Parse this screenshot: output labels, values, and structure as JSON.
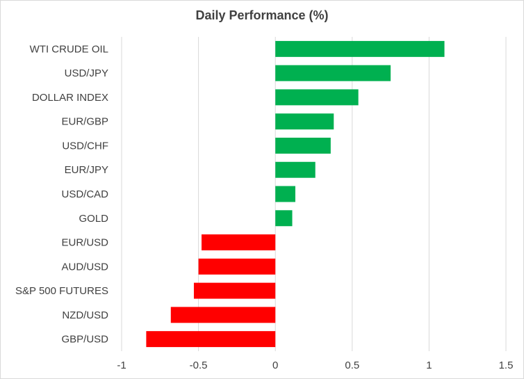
{
  "chart_data": {
    "type": "bar",
    "orientation": "horizontal",
    "title": "Daily Performance (%)",
    "xlabel": "",
    "ylabel": "",
    "categories": [
      "WTI CRUDE OIL",
      "USD/JPY",
      "DOLLAR INDEX",
      "EUR/GBP",
      "USD/CHF",
      "EUR/JPY",
      "USD/CAD",
      "GOLD",
      "EUR/USD",
      "AUD/USD",
      "S&P 500 FUTURES",
      "NZD/USD",
      "GBP/USD"
    ],
    "values": [
      1.1,
      0.75,
      0.54,
      0.38,
      0.36,
      0.26,
      0.13,
      0.11,
      -0.48,
      -0.5,
      -0.53,
      -0.68,
      -0.84
    ],
    "xlim": [
      -1,
      1.5
    ],
    "xticks": [
      "-1",
      "-0.5",
      "0",
      "0.5",
      "1",
      "1.5"
    ],
    "xtick_values": [
      -1,
      -0.5,
      0,
      0.5,
      1,
      1.5
    ],
    "grid": "vertical",
    "legend": "none",
    "colors": {
      "positive": "#00b050",
      "negative": "#ff0000",
      "grid": "#d9d9d9",
      "text": "#404040"
    }
  }
}
